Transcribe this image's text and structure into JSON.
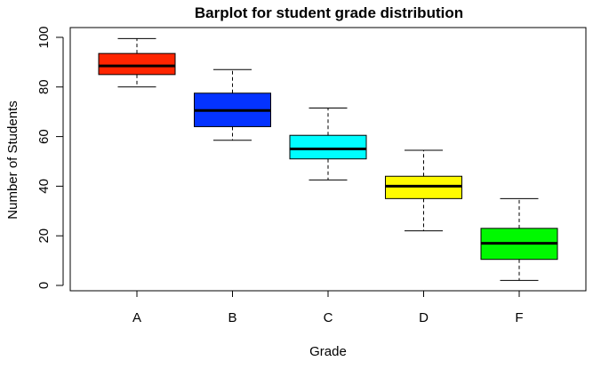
{
  "chart_data": {
    "type": "boxplot",
    "title": "Barplot for student grade distribution",
    "xlabel": "Grade",
    "ylabel": "Number of Students",
    "ylim": [
      0,
      100
    ],
    "yticks": [
      "0",
      "20",
      "40",
      "60",
      "80",
      "100"
    ],
    "categories": [
      "A",
      "B",
      "C",
      "D",
      "F"
    ],
    "boxes": [
      {
        "category": "A",
        "min": 80,
        "q1": 85,
        "median": 88.5,
        "q3": 93.5,
        "max": 99.5,
        "color": "#ff2500"
      },
      {
        "category": "B",
        "min": 58.5,
        "q1": 64,
        "median": 70.5,
        "q3": 77.5,
        "max": 87,
        "color": "#0433ff"
      },
      {
        "category": "C",
        "min": 42.5,
        "q1": 51,
        "median": 55,
        "q3": 60.5,
        "max": 71.5,
        "color": "#00fdff"
      },
      {
        "category": "D",
        "min": 22,
        "q1": 35,
        "median": 40,
        "q3": 44,
        "max": 54.5,
        "color": "#fffb00"
      },
      {
        "category": "F",
        "min": 2,
        "q1": 10.5,
        "median": 17,
        "q3": 23,
        "max": 35,
        "color": "#00f900"
      }
    ],
    "grid": false,
    "legend": "none"
  }
}
